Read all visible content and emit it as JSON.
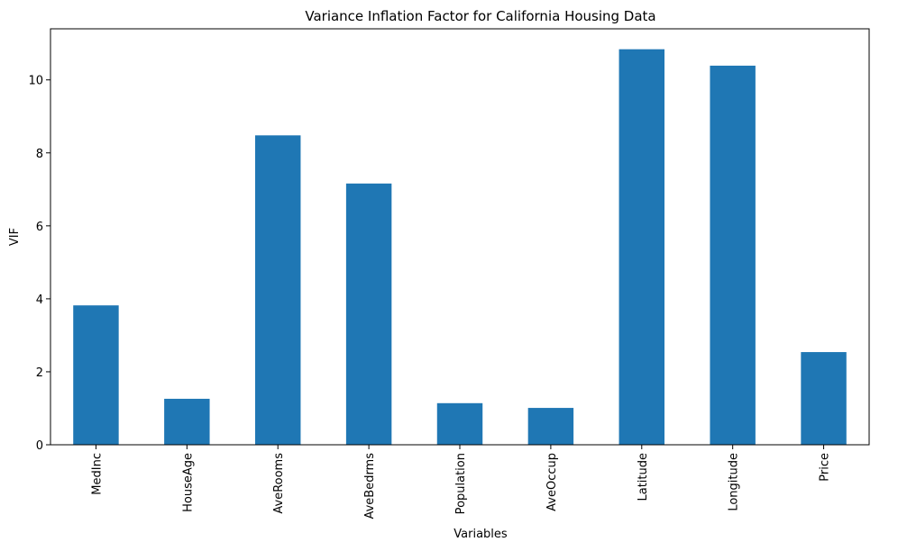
{
  "chart_data": {
    "type": "bar",
    "title": "Variance Inflation Factor for California Housing Data",
    "xlabel": "Variables",
    "ylabel": "VIF",
    "categories": [
      "MedInc",
      "HouseAge",
      "AveRooms",
      "AveBedrms",
      "Population",
      "AveOccup",
      "Latitude",
      "Longitude",
      "Price"
    ],
    "values": [
      3.82,
      1.26,
      8.48,
      7.16,
      1.14,
      1.01,
      10.84,
      10.39,
      2.54
    ],
    "yticks": [
      0,
      2,
      4,
      6,
      8,
      10
    ],
    "ylim": [
      0,
      11.4
    ],
    "grid": false,
    "legend": "none",
    "bar_color": "#1f77b4"
  }
}
